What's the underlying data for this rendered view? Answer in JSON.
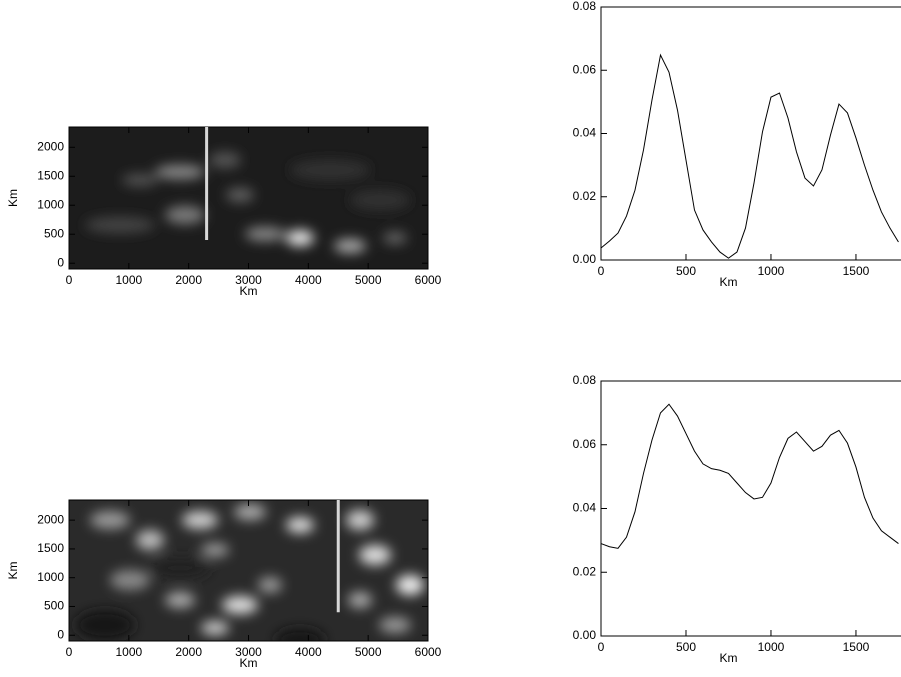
{
  "chart_data": [
    {
      "type": "image",
      "x_label": "Km",
      "y_label": "Km",
      "xlim": [
        0,
        6000
      ],
      "ylim": [
        -100,
        2350
      ],
      "xticks": [
        0,
        1000,
        2000,
        3000,
        4000,
        5000,
        6000
      ],
      "yticks": [
        0,
        500,
        1000,
        1500,
        2000
      ],
      "marker": {
        "x": 2300,
        "y": [
          400,
          2350
        ],
        "color": "#d8d8d8"
      }
    },
    {
      "type": "line",
      "x_label": "Km",
      "color": "#000000",
      "xlim": [
        0,
        1765
      ],
      "ylim": [
        0,
        0.08
      ],
      "xticks": [
        0,
        500,
        1000,
        1500
      ],
      "yticks": [
        {
          "value": 0,
          "label": "0.00"
        },
        {
          "value": 0.02,
          "label": "0.02"
        },
        {
          "value": 0.04,
          "label": "0.04"
        },
        {
          "value": 0.06,
          "label": "0.06"
        },
        {
          "value": 0.08,
          "label": "0.08"
        }
      ],
      "x": [
        0,
        50,
        100,
        150,
        200,
        250,
        300,
        350,
        400,
        450,
        500,
        550,
        600,
        650,
        700,
        750,
        800,
        850,
        900,
        950,
        1000,
        1050,
        1100,
        1150,
        1200,
        1250,
        1300,
        1350,
        1400,
        1450,
        1500,
        1550,
        1600,
        1650,
        1700,
        1750
      ],
      "values": [
        0.0038,
        0.006,
        0.0085,
        0.0139,
        0.0221,
        0.0348,
        0.0506,
        0.0648,
        0.0594,
        0.0474,
        0.0316,
        0.0158,
        0.0095,
        0.0057,
        0.0025,
        0.0006,
        0.0025,
        0.0101,
        0.0243,
        0.0405,
        0.0515,
        0.0528,
        0.0449,
        0.0342,
        0.0259,
        0.0234,
        0.0285,
        0.0395,
        0.0493,
        0.0465,
        0.0386,
        0.03,
        0.0221,
        0.0152,
        0.0101,
        0.0057
      ]
    },
    {
      "type": "image",
      "x_label": "Km",
      "y_label": "Km",
      "xlim": [
        0,
        6000
      ],
      "ylim": [
        -100,
        2350
      ],
      "xticks": [
        0,
        1000,
        2000,
        3000,
        4000,
        5000,
        6000
      ],
      "yticks": [
        0,
        500,
        1000,
        1500,
        2000
      ],
      "marker": {
        "x": 4500,
        "y": [
          400,
          2350
        ],
        "color": "#d8d8d8"
      }
    },
    {
      "type": "line",
      "x_label": "Km",
      "color": "#000000",
      "xlim": [
        0,
        1765
      ],
      "ylim": [
        0,
        0.08
      ],
      "xticks": [
        0,
        500,
        1000,
        1500
      ],
      "yticks": [
        {
          "value": 0,
          "label": "0.00"
        },
        {
          "value": 0.02,
          "label": "0.02"
        },
        {
          "value": 0.04,
          "label": "0.04"
        },
        {
          "value": 0.06,
          "label": "0.06"
        },
        {
          "value": 0.08,
          "label": "0.08"
        }
      ],
      "x": [
        0,
        50,
        100,
        150,
        200,
        250,
        300,
        350,
        400,
        450,
        500,
        550,
        600,
        650,
        700,
        750,
        800,
        850,
        900,
        950,
        1000,
        1050,
        1100,
        1150,
        1200,
        1250,
        1300,
        1350,
        1400,
        1450,
        1500,
        1550,
        1600,
        1650,
        1700,
        1750
      ],
      "values": [
        0.029,
        0.028,
        0.0275,
        0.031,
        0.039,
        0.051,
        0.0615,
        0.07,
        0.0727,
        0.069,
        0.0635,
        0.058,
        0.054,
        0.0525,
        0.052,
        0.051,
        0.048,
        0.045,
        0.043,
        0.0435,
        0.048,
        0.056,
        0.062,
        0.064,
        0.061,
        0.058,
        0.0595,
        0.063,
        0.0645,
        0.0605,
        0.053,
        0.0435,
        0.037,
        0.033,
        0.031,
        0.029
      ]
    }
  ]
}
